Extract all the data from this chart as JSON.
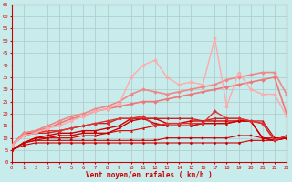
{
  "title": "",
  "xlabel": "Vent moyen/en rafales ( km/h )",
  "xlim": [
    0,
    23
  ],
  "ylim": [
    0,
    65
  ],
  "yticks": [
    0,
    5,
    10,
    15,
    20,
    25,
    30,
    35,
    40,
    45,
    50,
    55,
    60,
    65
  ],
  "xticks": [
    0,
    1,
    2,
    3,
    4,
    5,
    6,
    7,
    8,
    9,
    10,
    11,
    12,
    13,
    14,
    15,
    16,
    17,
    18,
    19,
    20,
    21,
    22,
    23
  ],
  "bg_color": "#c8ecec",
  "grid_color": "#aaaaaa",
  "series": [
    {
      "x": [
        0,
        1,
        2,
        3,
        4,
        5,
        6,
        7,
        8,
        9,
        10,
        11,
        12,
        13,
        14,
        15,
        16,
        17,
        18,
        19,
        20,
        21,
        22,
        23
      ],
      "y": [
        5,
        7,
        8,
        8,
        8,
        8,
        8,
        8,
        8,
        8,
        8,
        8,
        8,
        8,
        8,
        8,
        8,
        8,
        8,
        8,
        9,
        9,
        9,
        10
      ],
      "color": "#cc0000",
      "lw": 0.8,
      "marker": "D",
      "ms": 1.5
    },
    {
      "x": [
        0,
        1,
        2,
        3,
        4,
        5,
        6,
        7,
        8,
        9,
        10,
        11,
        12,
        13,
        14,
        15,
        16,
        17,
        18,
        19,
        20,
        21,
        22,
        23
      ],
      "y": [
        5,
        8,
        9,
        9,
        9,
        9,
        9,
        9,
        9,
        9,
        9,
        9,
        9,
        10,
        10,
        10,
        10,
        10,
        10,
        11,
        11,
        10,
        10,
        10
      ],
      "color": "#cc0000",
      "lw": 0.8,
      "marker": "s",
      "ms": 1.5
    },
    {
      "x": [
        0,
        1,
        2,
        3,
        4,
        5,
        6,
        7,
        8,
        9,
        10,
        11,
        12,
        13,
        14,
        15,
        16,
        17,
        18,
        19,
        20,
        21,
        22,
        23
      ],
      "y": [
        5,
        8,
        9,
        10,
        10,
        10,
        11,
        11,
        12,
        13,
        13,
        14,
        15,
        15,
        15,
        15,
        16,
        16,
        16,
        17,
        17,
        17,
        10,
        10
      ],
      "color": "#cc0000",
      "lw": 0.8,
      "marker": "^",
      "ms": 1.5
    },
    {
      "x": [
        0,
        1,
        2,
        3,
        4,
        5,
        6,
        7,
        8,
        9,
        10,
        11,
        12,
        13,
        14,
        15,
        16,
        17,
        18,
        19,
        20,
        21,
        22,
        23
      ],
      "y": [
        5,
        8,
        10,
        10,
        11,
        11,
        12,
        12,
        12,
        14,
        17,
        18,
        16,
        15,
        15,
        15,
        16,
        16,
        16,
        17,
        17,
        10,
        9,
        10
      ],
      "color": "#cc0000",
      "lw": 1.0,
      "marker": "v",
      "ms": 2
    },
    {
      "x": [
        0,
        1,
        2,
        3,
        4,
        5,
        6,
        7,
        8,
        9,
        10,
        11,
        12,
        13,
        14,
        15,
        16,
        17,
        18,
        19,
        20,
        21,
        22,
        23
      ],
      "y": [
        5,
        8,
        10,
        11,
        12,
        12,
        13,
        13,
        14,
        15,
        18,
        18,
        18,
        16,
        16,
        17,
        17,
        17,
        17,
        17,
        17,
        10,
        9,
        10
      ],
      "color": "#cc0000",
      "lw": 1.0,
      "marker": ">",
      "ms": 2
    },
    {
      "x": [
        0,
        1,
        2,
        3,
        4,
        5,
        6,
        7,
        8,
        9,
        10,
        11,
        12,
        13,
        14,
        15,
        16,
        17,
        18,
        19,
        20,
        21,
        22,
        23
      ],
      "y": [
        7,
        11,
        12,
        12,
        13,
        14,
        15,
        16,
        16,
        18,
        18,
        18,
        18,
        18,
        18,
        18,
        17,
        18,
        18,
        18,
        17,
        16,
        9,
        11
      ],
      "color": "#cc2222",
      "lw": 1.0,
      "marker": "<",
      "ms": 2
    },
    {
      "x": [
        0,
        1,
        2,
        3,
        4,
        5,
        6,
        7,
        8,
        9,
        10,
        11,
        12,
        13,
        14,
        15,
        16,
        17,
        18,
        19,
        20,
        21,
        22,
        23
      ],
      "y": [
        7,
        12,
        12,
        13,
        13,
        14,
        15,
        16,
        17,
        18,
        18,
        19,
        15,
        16,
        16,
        16,
        16,
        21,
        18,
        18,
        17,
        16,
        9,
        11
      ],
      "color": "#dd3333",
      "lw": 1.0,
      "marker": "D",
      "ms": 2
    },
    {
      "x": [
        0,
        1,
        2,
        3,
        4,
        5,
        6,
        7,
        8,
        9,
        10,
        11,
        12,
        13,
        14,
        15,
        16,
        17,
        18,
        19,
        20,
        21,
        22,
        23
      ],
      "y": [
        7,
        12,
        13,
        14,
        16,
        18,
        19,
        21,
        22,
        23,
        24,
        25,
        25,
        26,
        27,
        28,
        29,
        30,
        31,
        32,
        33,
        34,
        35,
        20
      ],
      "color": "#ee7777",
      "lw": 1.2,
      "marker": "D",
      "ms": 2
    },
    {
      "x": [
        0,
        1,
        2,
        3,
        4,
        5,
        6,
        7,
        8,
        9,
        10,
        11,
        12,
        13,
        14,
        15,
        16,
        17,
        18,
        19,
        20,
        21,
        22,
        23
      ],
      "y": [
        7,
        12,
        13,
        15,
        17,
        19,
        20,
        22,
        23,
        25,
        28,
        30,
        29,
        28,
        29,
        30,
        31,
        32,
        34,
        35,
        36,
        37,
        37,
        28
      ],
      "color": "#ee8888",
      "lw": 1.2,
      "marker": "D",
      "ms": 2
    },
    {
      "x": [
        0,
        1,
        2,
        3,
        4,
        5,
        6,
        7,
        8,
        9,
        10,
        11,
        12,
        13,
        14,
        15,
        16,
        17,
        18,
        19,
        20,
        21,
        22,
        23
      ],
      "y": [
        7,
        11,
        12,
        14,
        15,
        17,
        19,
        21,
        22,
        24,
        35,
        40,
        42,
        35,
        32,
        33,
        32,
        51,
        23,
        37,
        30,
        28,
        28,
        19
      ],
      "color": "#ffaaaa",
      "lw": 1.0,
      "marker": "D",
      "ms": 2
    }
  ]
}
